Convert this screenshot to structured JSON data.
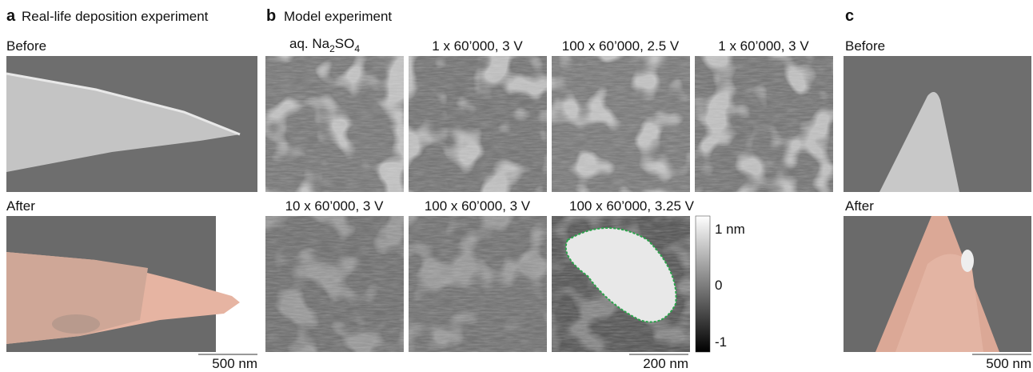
{
  "panels": [
    {
      "letter": "a",
      "title": "Real-life deposition experiment",
      "images": [
        {
          "label": "Before"
        },
        {
          "label": "After"
        }
      ],
      "scale_bar": "500 nm"
    },
    {
      "letter": "b",
      "title": "Model experiment",
      "images": [
        {
          "label": [
            "aq. Na",
            "2",
            "SO",
            "4"
          ]
        },
        {
          "label": "1 x 60’000, 3 V"
        },
        {
          "label": "100 x 60’000, 2.5 V"
        },
        {
          "label": "1 x 60’000, 3 V"
        },
        {
          "label": "10 x 60’000, 3 V"
        },
        {
          "label": "100 x 60’000, 3 V"
        },
        {
          "label": "100 x 60’000, 3.25 V"
        }
      ],
      "colorbar": [
        "1 nm",
        "0",
        "-1"
      ],
      "scale_bar": "200 nm"
    },
    {
      "letter": "c",
      "images": [
        {
          "label": "Before"
        },
        {
          "label": "After"
        }
      ],
      "scale_bar": "500 nm"
    }
  ]
}
